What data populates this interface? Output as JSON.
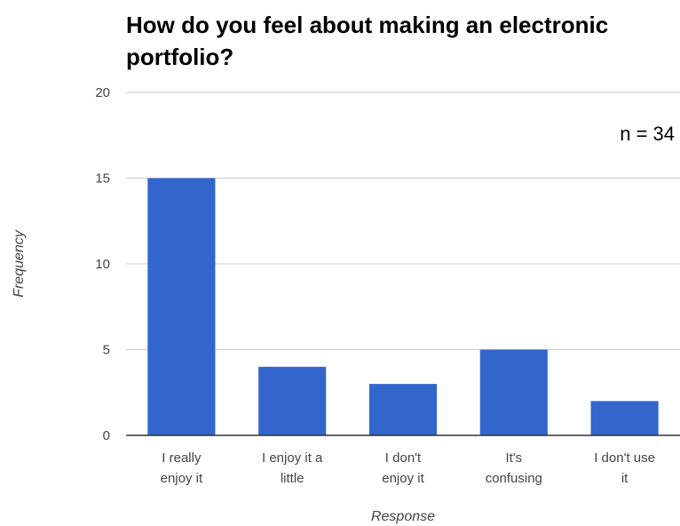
{
  "chart_data": {
    "type": "bar",
    "title": "How do you feel about making an electronic portfolio?",
    "annotation": "n = 34",
    "xlabel": "Response",
    "ylabel": "Frequency",
    "categories": [
      "I really enjoy it",
      "I enjoy it a little",
      "I don't enjoy it",
      "It's confusing",
      "I don't use it"
    ],
    "category_lines": [
      [
        "I really",
        "enjoy it"
      ],
      [
        "I enjoy it a",
        "little"
      ],
      [
        "I don't",
        "enjoy it"
      ],
      [
        "It's",
        "confusing"
      ],
      [
        "I don't use",
        "it"
      ]
    ],
    "values": [
      15,
      4,
      3,
      5,
      2
    ],
    "ylim": [
      0,
      20
    ],
    "yticks": [
      "0",
      "5",
      "10",
      "15",
      "20"
    ],
    "grid": true,
    "legend": "none",
    "bar_color": "#3366cc",
    "grid_color": "#cccccc",
    "axis_color": "#333333"
  }
}
